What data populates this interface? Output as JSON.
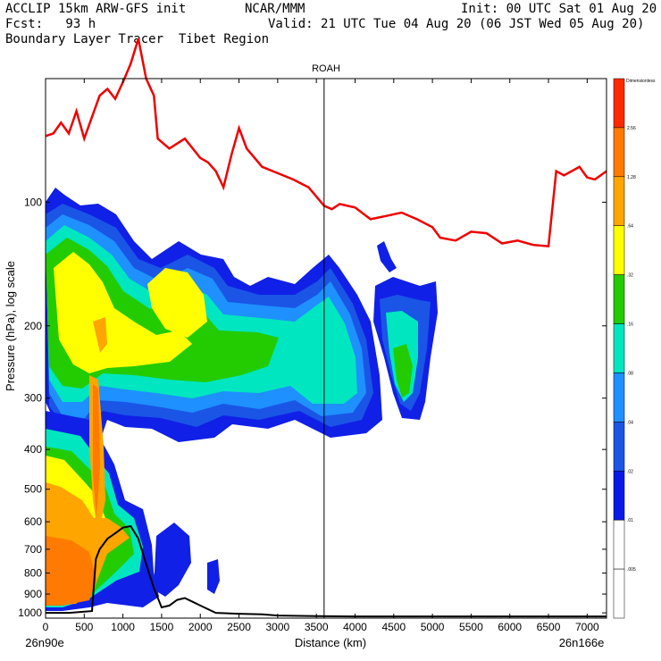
{
  "header": {
    "line1_left": "ACCLIP 15km ARW-GFS init",
    "line1_mid": "NCAR/MMM",
    "line1_right": "Init: 00 UTC Sat 01 Aug 20",
    "line2_left": "Fcst:   93 h",
    "line2_right": "Valid: 21 UTC Tue 04 Aug 20 (06 JST Wed 05 Aug 20)",
    "line3_left": "Boundary Layer Tracer  Tibet Region"
  },
  "chart_data": {
    "type": "contour cross-section",
    "title": "ROAH",
    "xlabel": "Distance (km)",
    "ylabel": "Pressure (hPa), log scale",
    "x_start_label": "26n90e",
    "x_end_label": "26n166e",
    "xlim": [
      0,
      7250
    ],
    "ylim": [
      1030,
      50
    ],
    "y_scale": "log",
    "x_ticks": [
      0,
      500,
      1000,
      1500,
      2000,
      2500,
      3000,
      3500,
      4000,
      4500,
      5000,
      5500,
      6000,
      6500,
      7000
    ],
    "y_ticks": [
      100,
      200,
      300,
      400,
      500,
      600,
      700,
      800,
      900,
      1000
    ],
    "vertical_marker_km": 3600,
    "colorbar": {
      "top_label": "Dimensionless",
      "levels": [
        "2.56",
        "1.28",
        ".64",
        ".32",
        ".16",
        ".08",
        ".04",
        ".02",
        ".01",
        ".005"
      ],
      "colors": [
        "#ff2a00",
        "#ff7a00",
        "#ffa500",
        "#ffff00",
        "#22cc00",
        "#00e6c0",
        "#1e90ff",
        "#1a55e6",
        "#0a1ae6",
        "#ffffff",
        "#ffffff"
      ]
    },
    "series": [
      {
        "name": "",
        "color": "#ee0000",
        "points": [
          [
            0,
            69
          ],
          [
            100,
            68
          ],
          [
            200,
            64
          ],
          [
            300,
            68
          ],
          [
            400,
            60
          ],
          [
            500,
            70
          ],
          [
            600,
            62
          ],
          [
            700,
            55
          ],
          [
            800,
            53
          ],
          [
            900,
            56
          ],
          [
            1000,
            51
          ],
          [
            1100,
            46
          ],
          [
            1200,
            40
          ],
          [
            1300,
            50
          ],
          [
            1400,
            55
          ],
          [
            1450,
            70
          ],
          [
            1600,
            74
          ],
          [
            1800,
            70
          ],
          [
            2000,
            78
          ],
          [
            2100,
            80
          ],
          [
            2200,
            84
          ],
          [
            2300,
            92
          ],
          [
            2400,
            77
          ],
          [
            2500,
            66
          ],
          [
            2600,
            74
          ],
          [
            2800,
            82
          ],
          [
            3000,
            85
          ],
          [
            3200,
            88
          ],
          [
            3400,
            92
          ],
          [
            3600,
            102
          ],
          [
            3700,
            104
          ],
          [
            3800,
            101
          ],
          [
            4000,
            103
          ],
          [
            4200,
            110
          ],
          [
            4400,
            108
          ],
          [
            4600,
            106
          ],
          [
            4800,
            110
          ],
          [
            5000,
            115
          ],
          [
            5100,
            122
          ],
          [
            5300,
            124
          ],
          [
            5500,
            118
          ],
          [
            5700,
            119
          ],
          [
            5900,
            126
          ],
          [
            6100,
            124
          ],
          [
            6300,
            127
          ],
          [
            6500,
            128
          ],
          [
            6600,
            84
          ],
          [
            6700,
            86
          ],
          [
            6800,
            84
          ],
          [
            6900,
            82
          ],
          [
            7000,
            87
          ],
          [
            7100,
            88
          ],
          [
            7250,
            84
          ]
        ]
      },
      {
        "name": "",
        "color": "#000000",
        "points": [
          [
            0,
            1000
          ],
          [
            100,
            1000
          ],
          [
            300,
            1000
          ],
          [
            600,
            990
          ],
          [
            650,
            740
          ],
          [
            700,
            700
          ],
          [
            800,
            660
          ],
          [
            900,
            640
          ],
          [
            1000,
            620
          ],
          [
            1100,
            615
          ],
          [
            1200,
            660
          ],
          [
            1300,
            760
          ],
          [
            1400,
            870
          ],
          [
            1500,
            970
          ],
          [
            1600,
            960
          ],
          [
            1700,
            930
          ],
          [
            1800,
            920
          ],
          [
            1900,
            940
          ],
          [
            2000,
            960
          ],
          [
            2200,
            1000
          ],
          [
            2500,
            1005
          ],
          [
            2800,
            1008
          ],
          [
            3000,
            1015
          ],
          [
            3500,
            1018
          ],
          [
            4000,
            1020
          ],
          [
            5000,
            1020
          ],
          [
            6000,
            1020
          ],
          [
            7250,
            1020
          ]
        ]
      }
    ]
  }
}
